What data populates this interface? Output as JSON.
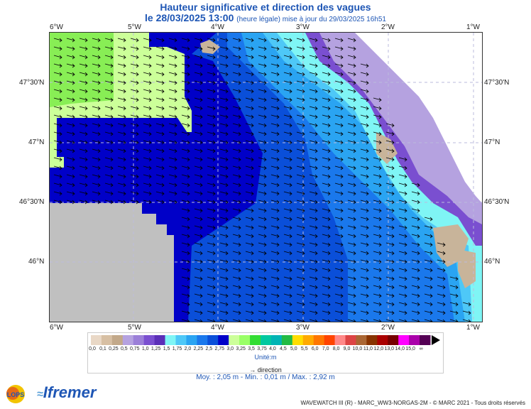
{
  "title": "Hauteur significative et direction des vagues",
  "subtitle": {
    "date": "le 28/03/2025 13:00",
    "note": "(heure légale) mise à jour du 29/03/2025 16h51"
  },
  "longitude_ticks": [
    "6°W",
    "5°W",
    "4°W",
    "3°W",
    "2°W",
    "1°W"
  ],
  "latitude_ticks": [
    "47°30'N",
    "47°N",
    "46°30'N",
    "46°N"
  ],
  "legend": {
    "values": [
      "0,0",
      "0,1",
      "0,25",
      "0,5",
      "0,75",
      "1,0",
      "1,25",
      "1,5",
      "1,75",
      "2,0",
      "2,25",
      "2,5",
      "2,75",
      "3,0",
      "3,25",
      "3,5",
      "3,75",
      "4,0",
      "4,5",
      "5,0",
      "5,5",
      "6,0",
      "7,0",
      "8,0",
      "9,0",
      "10,0",
      "11,0",
      "12,0",
      "13,0",
      "14,0",
      "15,0",
      "∞"
    ],
    "colors": [
      "#e9d8c6",
      "#d7bfa3",
      "#c2a889",
      "#b5a2e0",
      "#9b7fd8",
      "#7a4fd0",
      "#5b2fb8",
      "#7ff5f5",
      "#4ec8f7",
      "#2aa4f2",
      "#1a78ec",
      "#0a4fd9",
      "#0000c8",
      "#ccff99",
      "#99ff66",
      "#33dd33",
      "#00c8a0",
      "#00b4b4",
      "#22bb44",
      "#ffdd00",
      "#ffaa00",
      "#ff7700",
      "#ff4400",
      "#ff8888",
      "#dd4444",
      "#aa6633",
      "#883300",
      "#aa0000",
      "#770000",
      "#ff00ff",
      "#aa00aa",
      "#550055"
    ],
    "unit": "Unité:m",
    "direction_label": "direction"
  },
  "stats": "Moy. : 2,05 m   -   Min. : 0,01 m / Max. : 2,92 m",
  "credit": "WAVEWATCH III (R) - MARC_WW3-NORGAS-2M - © MARC 2021 - Tous droits réservés",
  "logos": {
    "lops": "LOPS",
    "ifremer": "Ifremer"
  },
  "colors": {
    "title": "#1e56b5",
    "land": "#c8b49a",
    "no_data": "#c0c0c0"
  }
}
